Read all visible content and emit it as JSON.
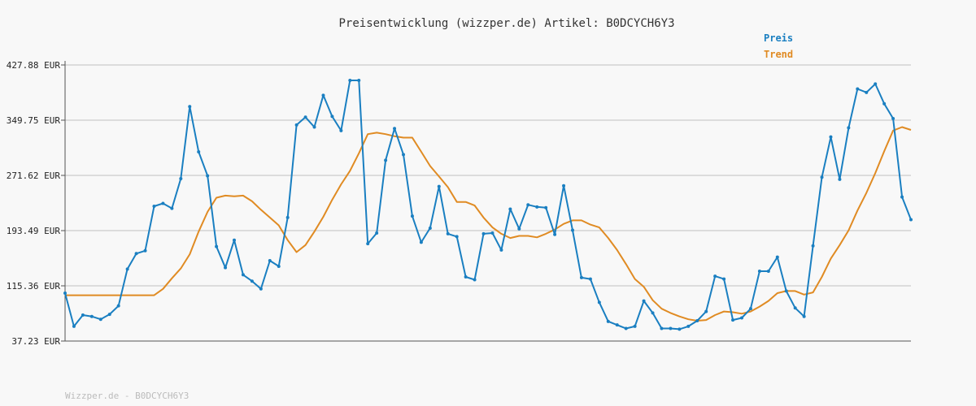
{
  "chart_data": {
    "type": "line",
    "title": "Preisentwicklung (wizzper.de) Artikel: B0DCYCH6Y3",
    "ylim": [
      37.23,
      427.88
    ],
    "yticks": [
      "427.88 EUR",
      "349.75 EUR",
      "271.62 EUR",
      "193.49 EUR",
      "115.36 EUR",
      "37.23 EUR"
    ],
    "ytick_values": [
      427.88,
      349.75,
      271.62,
      193.49,
      115.36,
      37.23
    ],
    "grid": true,
    "legend_position": "top-right",
    "series": [
      {
        "name": "Preis",
        "color": "#1a7fc1",
        "values": [
          105,
          58,
          74,
          72,
          68,
          75,
          87,
          139,
          161,
          165,
          228,
          232,
          225,
          267,
          369,
          305,
          271,
          171,
          141,
          180,
          131,
          122,
          111,
          151,
          143,
          212,
          343,
          354,
          340,
          385,
          355,
          335,
          406,
          406,
          175,
          190,
          293,
          338,
          301,
          214,
          177,
          197,
          256,
          189,
          185,
          128,
          124,
          189,
          190,
          166,
          224,
          196,
          230,
          227,
          226,
          188,
          257,
          194,
          127,
          125,
          92,
          65,
          60,
          55,
          58,
          94,
          77,
          55,
          55,
          54,
          58,
          66,
          79,
          129,
          125,
          67,
          70,
          83,
          136,
          136,
          156,
          108,
          84,
          72,
          172,
          269,
          326,
          266,
          339,
          394,
          389,
          401,
          373,
          352,
          241,
          209
        ]
      },
      {
        "name": "Trend",
        "color": "#e08b23",
        "values": [
          102,
          102,
          102,
          102,
          102,
          102,
          102,
          102,
          102,
          102,
          102,
          111,
          126,
          140,
          160,
          192,
          220,
          240,
          243,
          242,
          243,
          235,
          223,
          212,
          201,
          180,
          163,
          173,
          192,
          213,
          237,
          259,
          278,
          303,
          330,
          332,
          330,
          327,
          325,
          325,
          305,
          285,
          270,
          255,
          234,
          234,
          229,
          212,
          198,
          189,
          183,
          186,
          186,
          184,
          189,
          195,
          203,
          208,
          208,
          202,
          198,
          183,
          166,
          146,
          125,
          114,
          95,
          83,
          77,
          72,
          68,
          66,
          67,
          74,
          79,
          78,
          76,
          79,
          86,
          94,
          105,
          108,
          108,
          103,
          106,
          128,
          154,
          173,
          194,
          222,
          247,
          275,
          306,
          335,
          340,
          336
        ]
      }
    ]
  },
  "footer": "Wizzper.de - B0DCYCH6Y3"
}
